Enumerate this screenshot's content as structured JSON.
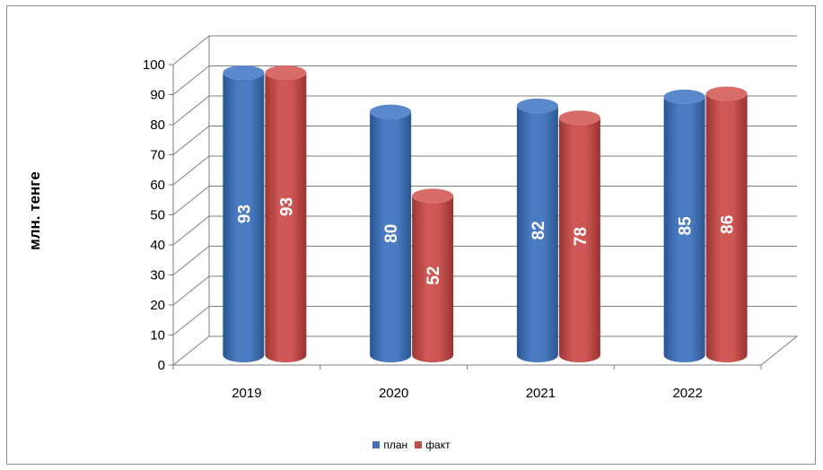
{
  "chart_data": {
    "type": "bar",
    "categories": [
      "2019",
      "2020",
      "2021",
      "2022"
    ],
    "series": [
      {
        "name": "план",
        "values": [
          93,
          80,
          82,
          85
        ],
        "color": "#3f6fb4"
      },
      {
        "name": "факт",
        "values": [
          93,
          52,
          78,
          86
        ],
        "color": "#c0504d"
      }
    ],
    "ylabel": "млн. тенге",
    "ylim": [
      0,
      100
    ],
    "yticks": [
      "0",
      "10",
      "20",
      "30",
      "40",
      "50",
      "60",
      "70",
      "80",
      "90",
      "100"
    ],
    "grid": true,
    "legend_position": "bottom",
    "data_labels": true
  }
}
